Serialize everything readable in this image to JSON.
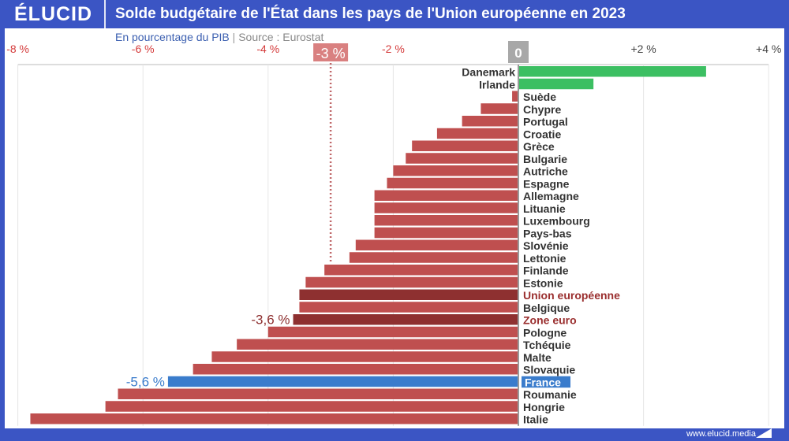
{
  "header": {
    "logo": "ÉLUCID",
    "title": "Solde budgétaire de l'État dans les pays de l'Union européenne en 2023"
  },
  "subtitle": "En pourcentage du PIB",
  "source": "Source : Eurostat",
  "footer": "www.elucid.media",
  "colors": {
    "positive": "#3cbf62",
    "negative": "#bf4f4f",
    "aggregate": "#8e3030",
    "highlight": "#3a7ccc",
    "tick_negative": "#d43a3a",
    "brand": "#3b55c4"
  },
  "chart_data": {
    "type": "bar",
    "orientation": "horizontal",
    "title": "Solde budgétaire de l'État dans les pays de l'Union européenne en 2023",
    "subtitle": "En pourcentage du PIB | Source : Eurostat",
    "xlabel": "",
    "ylabel": "",
    "xlim": [
      -8,
      4
    ],
    "xticks": [
      {
        "value": -8,
        "label": "-8 %"
      },
      {
        "value": -6,
        "label": "-6 %"
      },
      {
        "value": -4,
        "label": "-4 %"
      },
      {
        "value": -2,
        "label": "-2 %"
      },
      {
        "value": 0,
        "label": "0"
      },
      {
        "value": 2,
        "label": "+2 %"
      },
      {
        "value": 4,
        "label": "+4 %"
      }
    ],
    "reference_line": {
      "value": -3,
      "label": "-3 %"
    },
    "grid": true,
    "categories": [
      "Danemark",
      "Irlande",
      "Suède",
      "Chypre",
      "Portugal",
      "Croatie",
      "Grèce",
      "Bulgarie",
      "Autriche",
      "Espagne",
      "Allemagne",
      "Lituanie",
      "Luxembourg",
      "Pays-bas",
      "Slovénie",
      "Lettonie",
      "Finlande",
      "Estonie",
      "Union européenne",
      "Belgique",
      "Zone euro",
      "Pologne",
      "Tchéquie",
      "Malte",
      "Slovaquie",
      "France",
      "Roumanie",
      "Hongrie",
      "Italie"
    ],
    "values": [
      3.0,
      1.2,
      -0.1,
      -0.6,
      -0.9,
      -1.3,
      -1.7,
      -1.8,
      -2.0,
      -2.1,
      -2.3,
      -2.3,
      -2.3,
      -2.3,
      -2.6,
      -2.7,
      -3.1,
      -3.4,
      -3.5,
      -3.5,
      -3.6,
      -4.0,
      -4.5,
      -4.9,
      -5.2,
      -5.6,
      -6.4,
      -6.6,
      -7.8
    ],
    "kinds": [
      "pos",
      "pos",
      "neg",
      "neg",
      "neg",
      "neg",
      "neg",
      "neg",
      "neg",
      "neg",
      "neg",
      "neg",
      "neg",
      "neg",
      "neg",
      "neg",
      "neg",
      "neg",
      "agg",
      "neg",
      "agg",
      "neg",
      "neg",
      "neg",
      "neg",
      "hl",
      "neg",
      "neg",
      "neg"
    ],
    "annotations": [
      {
        "category": "Zone euro",
        "label": "-3,6 %"
      },
      {
        "category": "France",
        "label": "-5,6 %"
      }
    ]
  }
}
